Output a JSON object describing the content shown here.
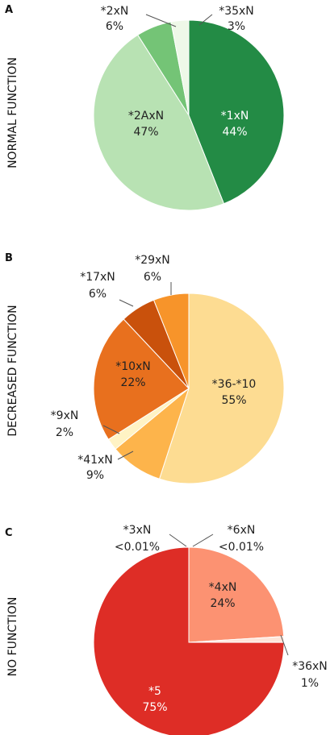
{
  "chart_data": [
    {
      "type": "pie",
      "panel": "A",
      "side_label": "NORMAL FUNCTION",
      "slices": [
        {
          "label": "*1xN",
          "value": 44,
          "display": "44%",
          "color": "#238b45"
        },
        {
          "label": "*2AxN",
          "value": 47,
          "display": "47%",
          "color": "#b8e2b3"
        },
        {
          "label": "*2xN",
          "value": 6,
          "display": "6%",
          "color": "#74c476"
        },
        {
          "label": "*35xN",
          "value": 3,
          "display": "3%",
          "color": "#eef8e8"
        }
      ]
    },
    {
      "type": "pie",
      "panel": "B",
      "side_label": "DECREASED FUNCTION",
      "slices": [
        {
          "label": "*36-*10",
          "value": 55,
          "display": "55%",
          "color": "#fddc92"
        },
        {
          "label": "*41xN",
          "value": 9,
          "display": "9%",
          "color": "#fdb44b"
        },
        {
          "label": "*9xN",
          "value": 2,
          "display": "2%",
          "color": "#fff3c4"
        },
        {
          "label": "*10xN",
          "value": 22,
          "display": "22%",
          "color": "#e8701e"
        },
        {
          "label": "*17xN",
          "value": 6,
          "display": "6%",
          "color": "#c9510c"
        },
        {
          "label": "*29xN",
          "value": 6,
          "display": "6%",
          "color": "#f7942a"
        }
      ]
    },
    {
      "type": "pie",
      "panel": "C",
      "side_label": "NO FUNCTION",
      "slices": [
        {
          "label": "*3xN",
          "value": 0.01,
          "display": "<0.01%",
          "color": "#de2d26"
        },
        {
          "label": "*6xN",
          "value": 0.01,
          "display": "<0.01%",
          "color": "#de2d26"
        },
        {
          "label": "*4xN",
          "value": 24,
          "display": "24%",
          "color": "#fc9272"
        },
        {
          "label": "*36xN",
          "value": 1,
          "display": "1%",
          "color": "#fee5d9"
        },
        {
          "label": "*5",
          "value": 75,
          "display": "75%",
          "color": "#de2d26"
        }
      ]
    }
  ]
}
